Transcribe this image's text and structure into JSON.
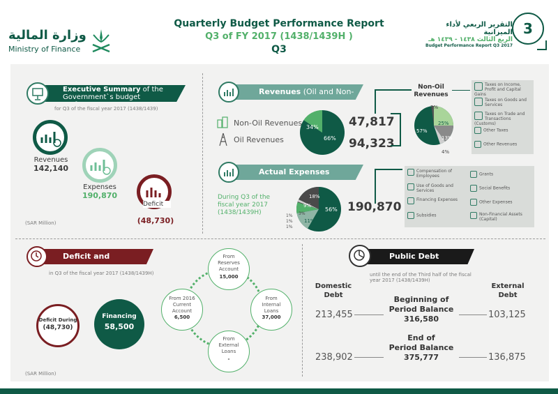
{
  "header": {
    "ministry_ar": "وزارة المالية",
    "ministry_en": "Ministry of Finance",
    "title": "Quarterly Budget Performance Report",
    "subtitle": "Q3 of FY 2017 (1438/1439H )",
    "quarter": "Q3",
    "right_ar1": "التقرير الربعي لأداء الميزانية",
    "right_ar2": "الربع الثالث ١٤٣٨ - ١٤٣٩ هـ",
    "right_en": "Budget Performance Report Q3 2017",
    "badge": "3"
  },
  "exec": {
    "title_bold": "Executive Summary",
    "title_rest": " of the",
    "title_line2": "Government`s budget performance",
    "subtitle": "for Q3 of the fiscal year 2017 (1438/1439)",
    "revenues_label": "Revenues",
    "revenues_value": "142,140",
    "expenses_label": "Expenses",
    "expenses_value": "190,870",
    "deficit_label": "Deficit",
    "deficit_value": "(48,730)",
    "unit": "(SAR Million)"
  },
  "revenues": {
    "title_bold": "Revenues",
    "title_rest": " (Oil and Non-Oil)",
    "nonoil_label": "Non-Oil Revenues",
    "oil_label": "Oil Revenues",
    "pie_nonoil_pct": "34%",
    "pie_oil_pct": "66%",
    "nonoil_value": "47,817",
    "oil_value": "94,323",
    "nonoil_title": "Non-Oil",
    "nonoil_title2": "Revenues",
    "nonoil_pie": [
      "57%",
      "25%",
      "13%",
      "4%",
      "2%"
    ],
    "legend": [
      "Taxes on Income, Profit and Capital Gains",
      "Taxes on Goods and Services",
      "Taxes on Trade and Transactions (Customs)",
      "Other Taxes",
      "Other Revenues"
    ],
    "colors": {
      "dark": "#0f5a46",
      "mid": "#52b06a",
      "light": "#a9d59a"
    }
  },
  "expenses": {
    "title": "Actual Expenses",
    "during_line1": "During Q3 of the",
    "during_line2": "fiscal year 2017",
    "during_line3": "(1438/1439H)",
    "value": "190,870",
    "pie": [
      "56%",
      "18%",
      "11%",
      "9%",
      "1%",
      "1%",
      "1%",
      "3%"
    ],
    "legend_left": [
      "Compensation of Employees",
      "Use of Goods and Services",
      "Financing Expenses",
      "Subsidies"
    ],
    "legend_right": [
      "Grants",
      "Social Benefits",
      "Other Expenses",
      "Non-Financial Assets (Capital)"
    ]
  },
  "deficit": {
    "title": "Deficit and Financing",
    "subtitle": "in Q3 of the fiscal year 2017 (1438/1439H)",
    "deficit_label": "Deficit During",
    "deficit_value": "(48,730)",
    "financing_label": "Financing",
    "financing_value": "58,500",
    "reserves_label": [
      "From",
      "Reserves",
      "Account"
    ],
    "reserves_value": "15,000",
    "current_label": [
      "From 2016",
      "Current",
      "Account"
    ],
    "current_value": "6,500",
    "internal_label": [
      "From",
      "Internal",
      "Loans"
    ],
    "internal_value": "37,000",
    "external_label": [
      "From",
      "External",
      "Loans"
    ],
    "external_value": "-",
    "unit": "(SAR Million)"
  },
  "debt": {
    "title": "Public Debt",
    "subtitle1": "until the end of the Third half of the fiscal",
    "subtitle2": "year 2017 (1438/1439H)",
    "domestic_label": [
      "Domestic",
      "Debt"
    ],
    "external_label": [
      "External",
      "Debt"
    ],
    "begin_label": [
      "Beginning of",
      "Period Balance"
    ],
    "begin_value": "316,580",
    "begin_domestic": "213,455",
    "begin_external": "103,125",
    "end_label": [
      "End of",
      "Period Balance"
    ],
    "end_value": "375,777",
    "end_domestic": "238,902",
    "end_external": "136,875"
  }
}
